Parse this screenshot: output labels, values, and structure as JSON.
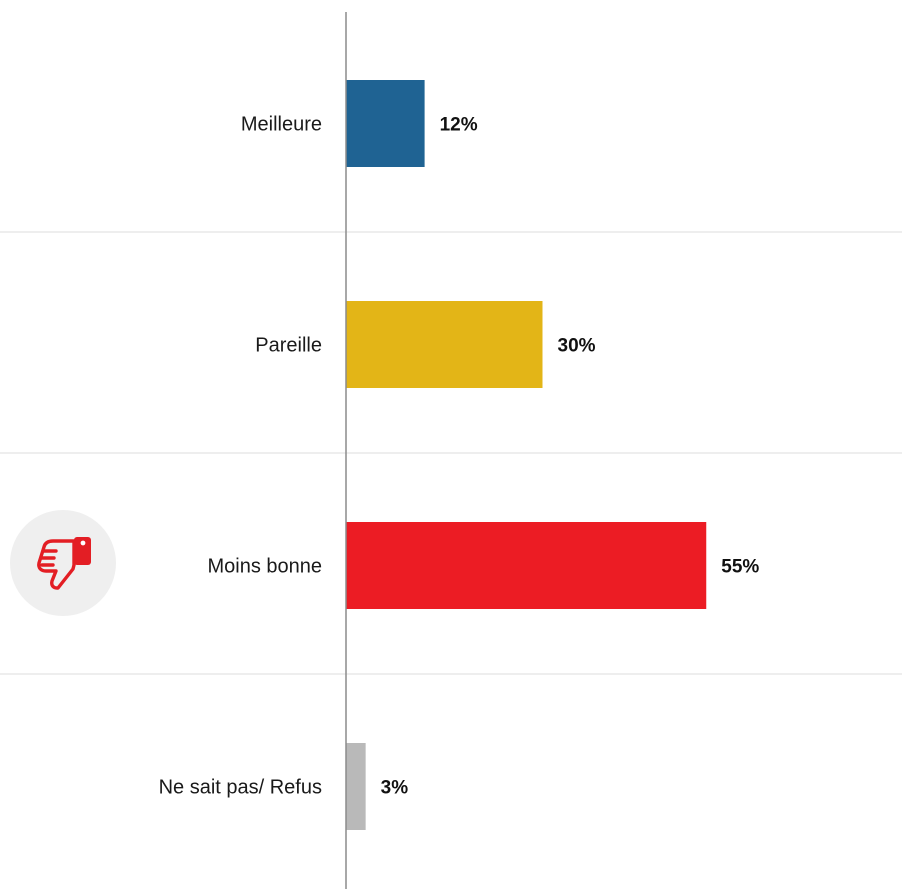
{
  "chart_data": {
    "type": "bar",
    "orientation": "horizontal",
    "categories": [
      "Meilleure",
      "Pareille",
      "Moins bonne",
      "Ne sait pas/ Refus"
    ],
    "values": [
      12,
      30,
      55,
      3
    ],
    "value_labels": [
      "12%",
      "30%",
      "55%",
      "3%"
    ],
    "unit": "%",
    "xlim": [
      0,
      100
    ],
    "colors": [
      "#1f6393",
      "#e3b517",
      "#ec1c24",
      "#b9b9b9"
    ],
    "grid": false,
    "row_separators": true,
    "legend": "none",
    "highlight": {
      "category": "Moins bonne",
      "icon": "thumbs-down-icon",
      "icon_color": "#e31e24",
      "badge_color": "#efefef"
    }
  }
}
